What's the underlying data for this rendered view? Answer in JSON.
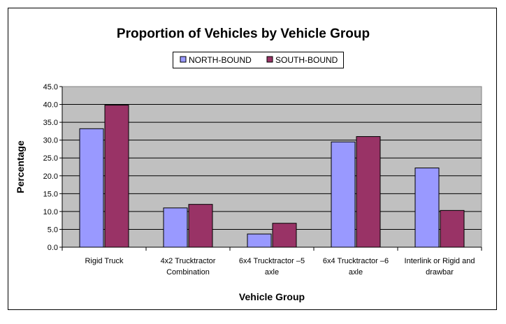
{
  "chart_data": {
    "type": "bar",
    "title": "Proportion of Vehicles by Vehicle Group",
    "xlabel": "Vehicle Group",
    "ylabel": "Percentage",
    "categories": [
      [
        "Rigid Truck"
      ],
      [
        "4x2 Trucktractor",
        "Combination"
      ],
      [
        "6x4 Trucktractor –5",
        "axle"
      ],
      [
        "6x4 Trucktractor –6",
        "axle"
      ],
      [
        "Interlink or Rigid and",
        "drawbar"
      ]
    ],
    "series": [
      {
        "name": "NORTH-BOUND",
        "color": "#9999ff",
        "values": [
          33.2,
          11.0,
          3.7,
          29.5,
          22.2
        ]
      },
      {
        "name": "SOUTH-BOUND",
        "color": "#993366",
        "values": [
          39.8,
          12.0,
          6.7,
          31.0,
          10.3
        ]
      }
    ],
    "ylim": [
      0,
      45
    ],
    "ytick_step": 5,
    "ytick_labels": [
      "0.0",
      "5.0",
      "10.0",
      "15.0",
      "20.0",
      "25.0",
      "30.0",
      "35.0",
      "40.0",
      "45.0"
    ],
    "grid": "horizontal",
    "plot_background": "#c0c0c0",
    "legend_position": "top"
  }
}
